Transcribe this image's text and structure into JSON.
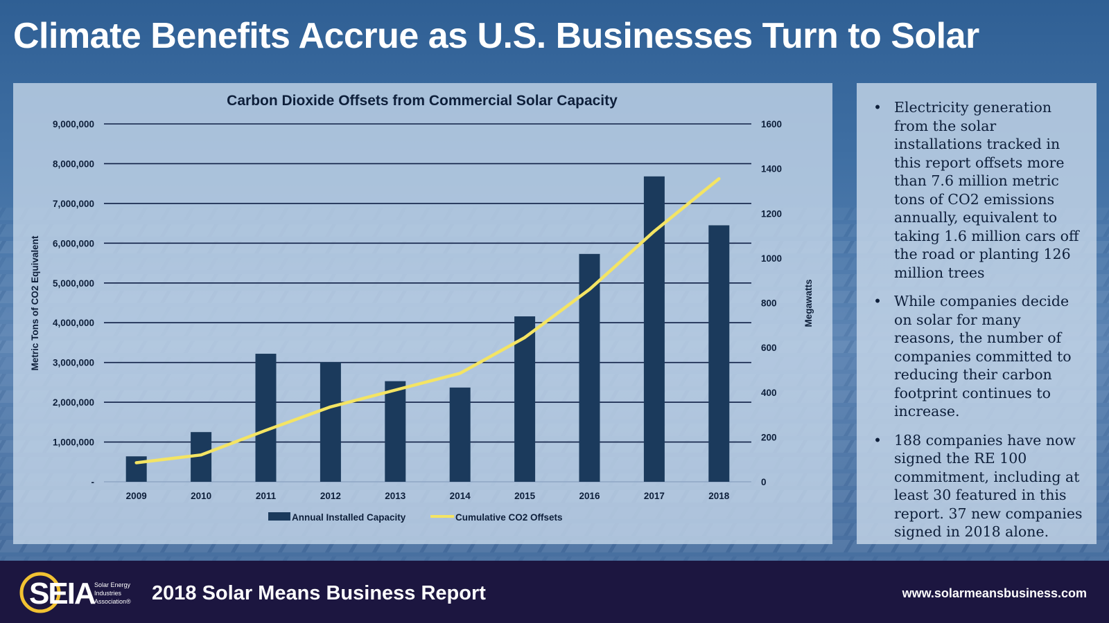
{
  "page": {
    "title": "Climate Benefits Accrue as U.S. Businesses Turn to Solar"
  },
  "colors": {
    "bar": "#1b3a5c",
    "line": "#f4e463",
    "grid": "#0f1f45",
    "text": "#0e1f3a",
    "footer_bg": "#1c1640",
    "logo_ring": "#f1c232"
  },
  "chart_data": {
    "type": "bar",
    "title": "Carbon Dioxide Offsets from Commercial Solar Capacity",
    "categories": [
      "2009",
      "2010",
      "2011",
      "2012",
      "2013",
      "2014",
      "2015",
      "2016",
      "2017",
      "2018"
    ],
    "series": [
      {
        "name": "Annual Installed Capacity",
        "type": "bar",
        "axis": "left",
        "values": [
          640000,
          1250000,
          3220000,
          3010000,
          2530000,
          2370000,
          4160000,
          5730000,
          7680000,
          6450000
        ]
      },
      {
        "name": "Cumulative CO2 Offsets",
        "type": "line",
        "axis": "right",
        "values": [
          85,
          120,
          230,
          335,
          410,
          485,
          645,
          860,
          1120,
          1355
        ]
      }
    ],
    "ylabel": "Metric Tons of CO2 Equivalent",
    "y2label": "Megawatts",
    "ylim": [
      0,
      9000000
    ],
    "y2lim": [
      0,
      1600
    ],
    "yticks": [
      0,
      1000000,
      2000000,
      3000000,
      4000000,
      5000000,
      6000000,
      7000000,
      8000000,
      9000000
    ],
    "ytick_labels": [
      "-",
      "1,000,000",
      "2,000,000",
      "3,000,000",
      "4,000,000",
      "5,000,000",
      "6,000,000",
      "7,000,000",
      "8,000,000",
      "9,000,000"
    ],
    "y2ticks": [
      0,
      200,
      400,
      600,
      800,
      1000,
      1200,
      1400,
      1600
    ],
    "y2tick_labels": [
      "0",
      "200",
      "400",
      "600",
      "800",
      "1000",
      "1200",
      "1400",
      "1600"
    ],
    "legend": [
      {
        "label": "Annual Installed Capacity",
        "marker": "bar"
      },
      {
        "label": "Cumulative CO2 Offsets",
        "marker": "line"
      }
    ],
    "legend_position": "bottom",
    "grid": true
  },
  "sidebar": {
    "bullet_char": "•",
    "bullets": [
      "Electricity generation from the solar installations tracked in this report offsets more than 7.6 million metric tons of CO2 emissions annually, equivalent to taking 1.6 million cars off the road or planting 126 million trees",
      "While companies decide on solar for many reasons, the number of companies committed to reducing their carbon footprint continues to increase.",
      "188 companies have now signed the RE 100 commitment, including at least 30 featured in this report. 37 new companies signed in 2018 alone."
    ]
  },
  "footer": {
    "logo_text": "SEIA",
    "logo_tagline": [
      "Solar Energy",
      "Industries",
      "Association®"
    ],
    "report_title": "2018 Solar Means Business Report",
    "website": "www.solarmeansbusiness.com"
  }
}
